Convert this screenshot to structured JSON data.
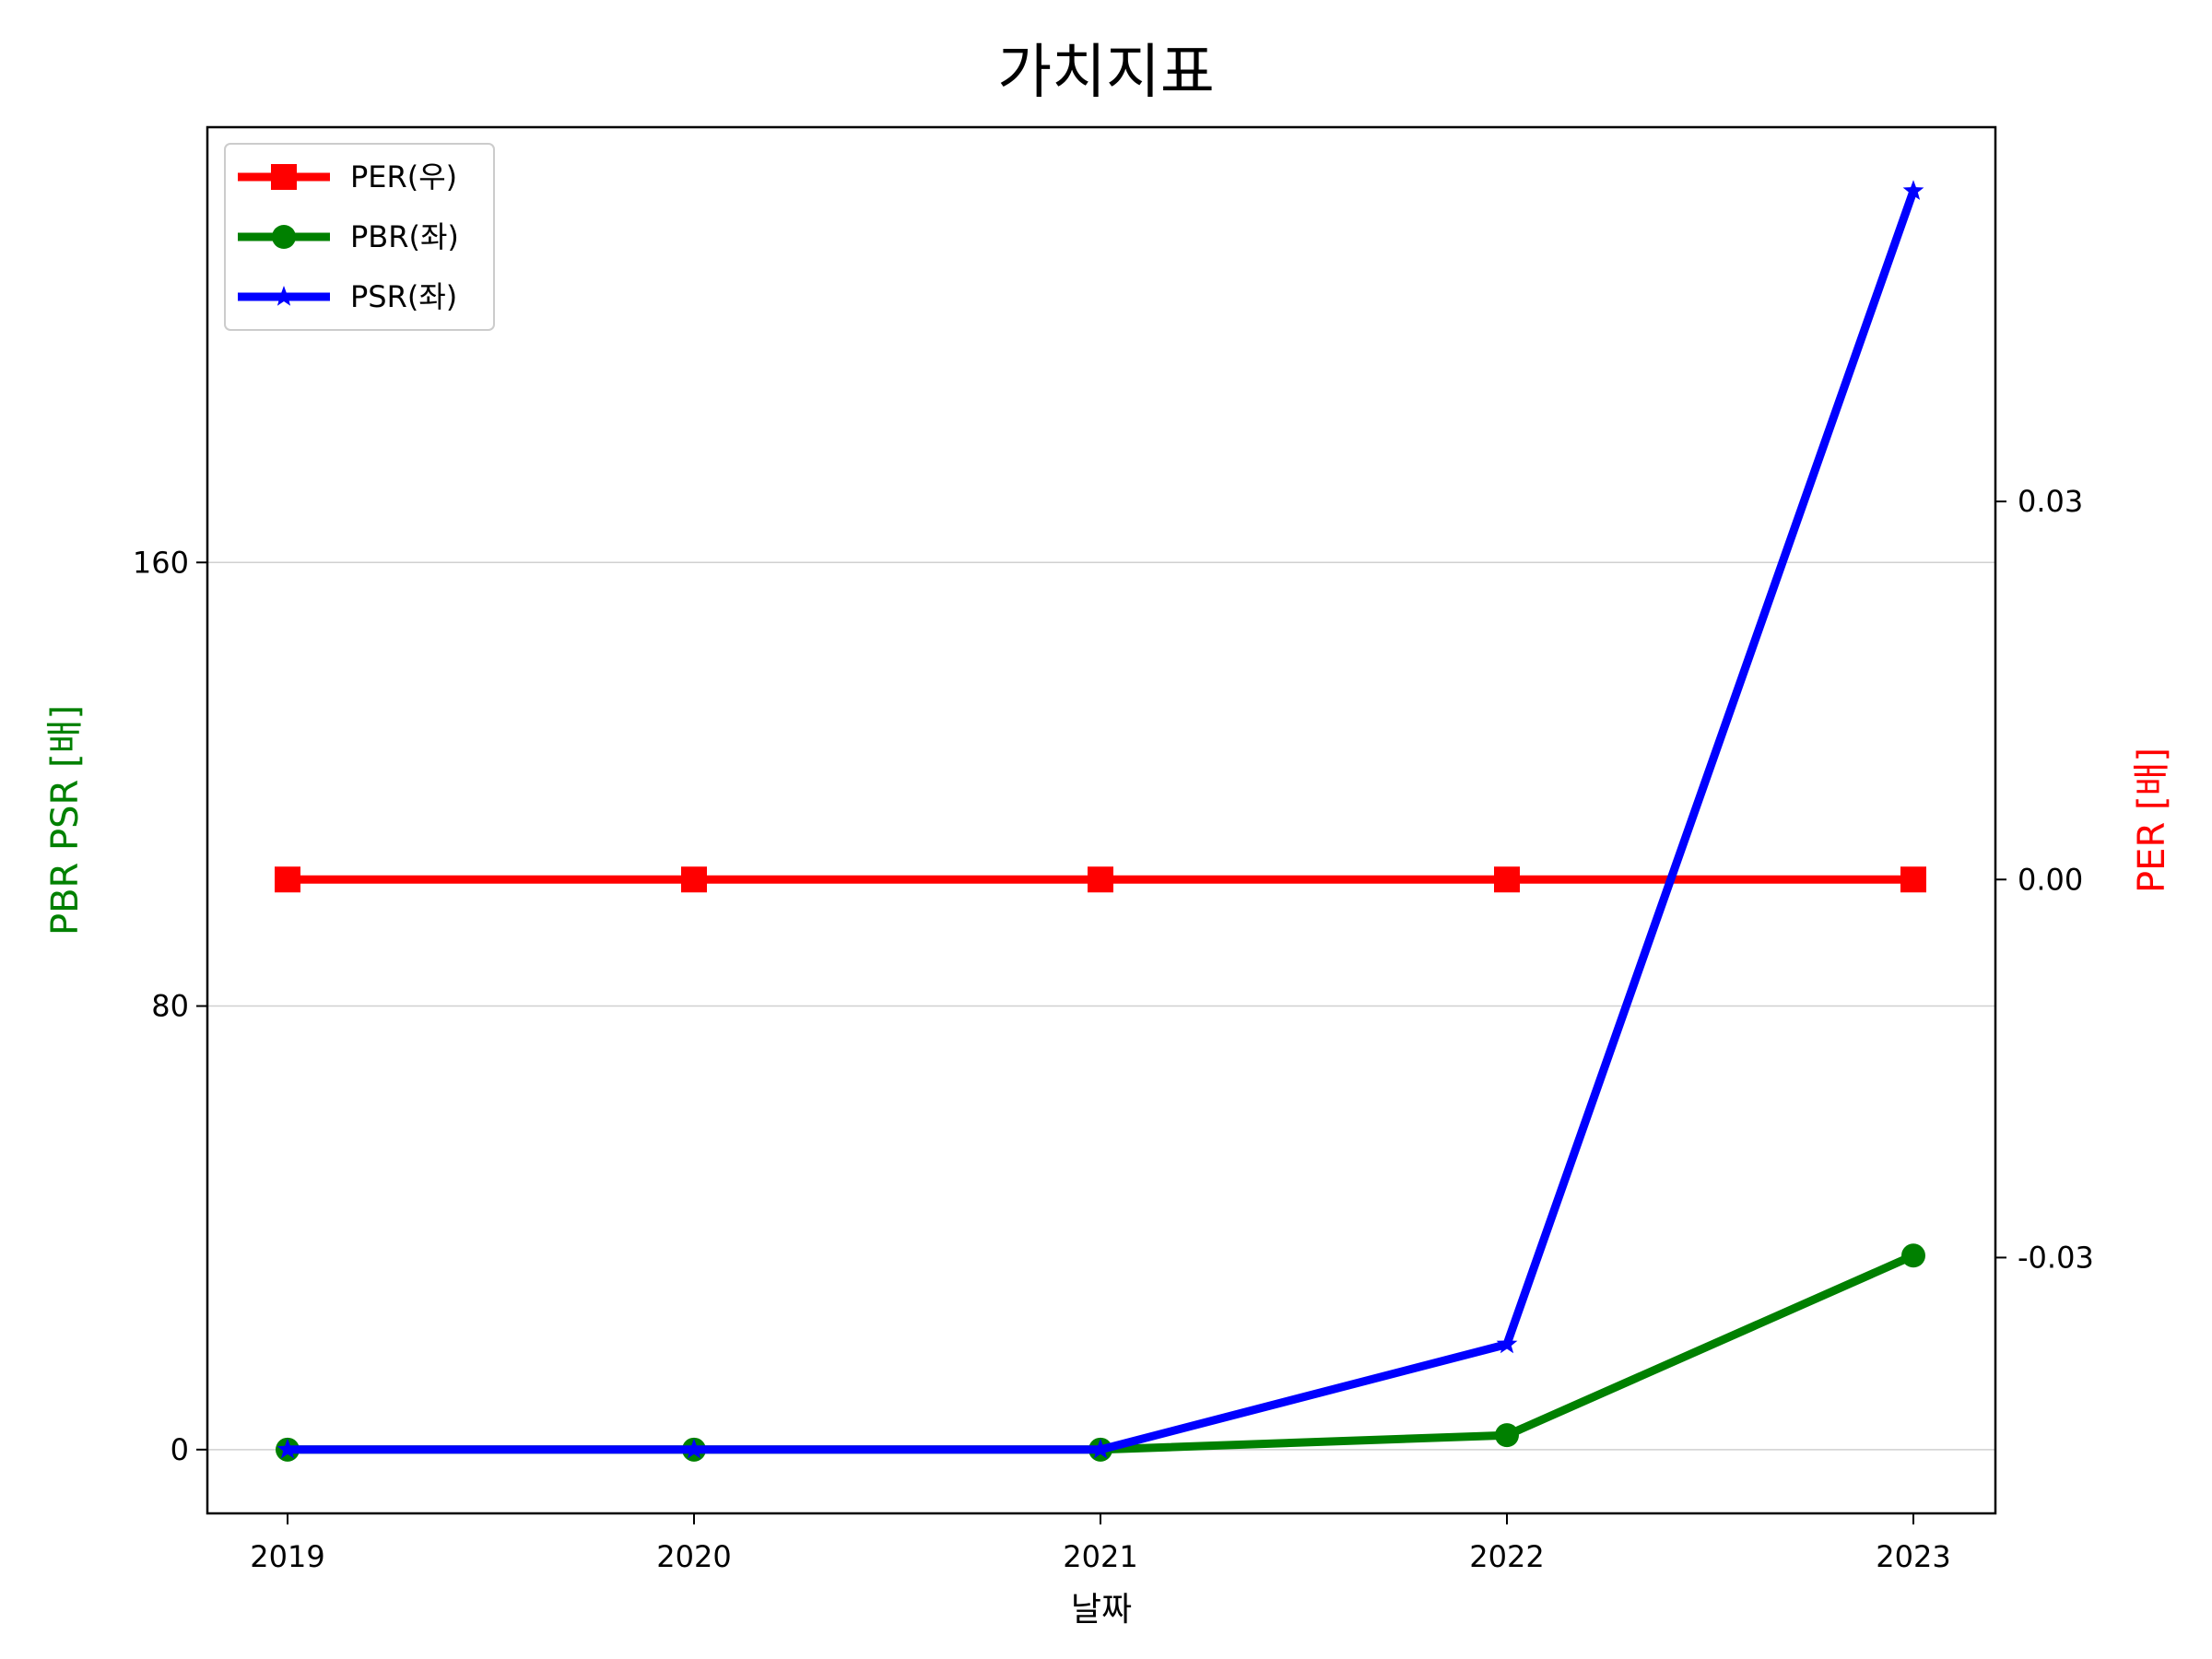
{
  "chart_data": {
    "type": "line",
    "title": "가치지표",
    "xlabel": "날짜",
    "ylabel_left": "PBR PSR [배]",
    "ylabel_right": "PER [배]",
    "x": [
      "2019",
      "2020",
      "2021",
      "2022",
      "2023"
    ],
    "y_left_ticks": [
      "0",
      "80",
      "160"
    ],
    "y_right_ticks": [
      "-0.03",
      "0.00",
      "0.03"
    ],
    "ylim_left": [
      -11.5,
      238.5
    ],
    "ylim_right": [
      -0.0503,
      0.0597
    ],
    "grid": "horizontal",
    "legend_position": "top-left",
    "series": [
      {
        "name": "PER(우)",
        "axis": "right",
        "color": "#ff0000",
        "marker": "square",
        "values": [
          0,
          0,
          0,
          0,
          0
        ]
      },
      {
        "name": "PBR(좌)",
        "axis": "left",
        "color": "#008000",
        "marker": "circle",
        "values": [
          0,
          0,
          0,
          2.6,
          35
        ]
      },
      {
        "name": "PSR(좌)",
        "axis": "left",
        "color": "#0000ff",
        "marker": "star",
        "values": [
          0,
          0,
          0,
          19,
          227
        ]
      }
    ],
    "colors": {
      "left_label": "#008000",
      "right_label": "#ff0000",
      "grid": "#d0d0d0"
    }
  }
}
